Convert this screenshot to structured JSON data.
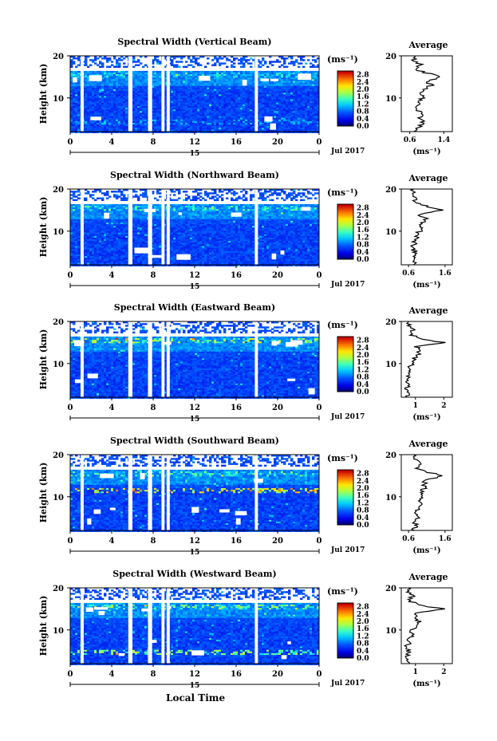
{
  "figure": {
    "date_label": "Jul 2017",
    "xlabel": "Local Time",
    "day_label": "15",
    "ylabel": "Height (km)",
    "unit_label": "(ms⁻¹)",
    "average_title": "Average",
    "average_unit": "(ms⁻¹)"
  },
  "chart_data": [
    {
      "type": "heatmap",
      "title": "Spectral Width (Vertical Beam)",
      "x_ticks": [
        "0",
        "4",
        "8",
        "12",
        "16",
        "20",
        "0"
      ],
      "y_ticks": [
        "20",
        "10"
      ],
      "xlim": [
        0,
        24
      ],
      "ylim": [
        2,
        20
      ],
      "colorbar_ticks": [
        "2.8",
        "2.4",
        "2.0",
        "1.6",
        "1.2",
        "0.8",
        "0.4",
        "0.0"
      ],
      "colorbar_range": [
        0,
        3.0
      ],
      "avg_ticks": [
        "0.6",
        "1.4"
      ],
      "avg_xlim": [
        0.4,
        1.6
      ],
      "avg_profile": {
        "height": [
          2,
          3,
          4,
          5,
          6,
          7,
          8,
          9,
          10,
          11,
          12,
          13,
          14,
          15,
          16,
          17,
          18,
          19,
          20
        ],
        "width": [
          0.75,
          0.8,
          0.95,
          0.85,
          0.9,
          0.8,
          0.8,
          0.85,
          0.9,
          0.88,
          0.95,
          1.1,
          1.0,
          1.35,
          0.95,
          0.7,
          0.85,
          0.7,
          0.8
        ]
      },
      "features": [
        {
          "height": 15.5,
          "level": 1.5
        },
        {
          "height": 4.5,
          "level": 1.2
        }
      ]
    },
    {
      "type": "heatmap",
      "title": "Spectral Width (Northward Beam)",
      "x_ticks": [
        "0",
        "4",
        "8",
        "12",
        "16",
        "20",
        "0"
      ],
      "y_ticks": [
        "20",
        "10"
      ],
      "xlim": [
        0,
        24
      ],
      "ylim": [
        2,
        20
      ],
      "colorbar_ticks": [
        "2.8",
        "2.4",
        "2.0",
        "1.6",
        "1.2",
        "0.8",
        "0.4",
        "0.0"
      ],
      "colorbar_range": [
        0,
        3.0
      ],
      "avg_ticks": [
        "0.6",
        "1.6"
      ],
      "avg_xlim": [
        0.4,
        1.8
      ],
      "avg_profile": {
        "height": [
          2,
          3,
          4,
          5,
          6,
          7,
          8,
          9,
          10,
          11,
          12,
          13,
          14,
          15,
          16,
          17,
          18,
          19,
          20
        ],
        "width": [
          0.7,
          0.75,
          0.7,
          0.8,
          0.7,
          0.75,
          0.8,
          0.85,
          0.9,
          0.95,
          1.0,
          1.05,
          0.9,
          1.5,
          1.05,
          0.7,
          0.8,
          0.7,
          0.75
        ]
      },
      "features": [
        {
          "height": 15.5,
          "level": 1.7
        }
      ]
    },
    {
      "type": "heatmap",
      "title": "Spectral Width (Eastward Beam)",
      "x_ticks": [
        "0",
        "4",
        "8",
        "12",
        "16",
        "20",
        "0"
      ],
      "y_ticks": [
        "20",
        "10"
      ],
      "xlim": [
        0,
        24
      ],
      "ylim": [
        2,
        20
      ],
      "colorbar_ticks": [
        "2.8",
        "2.4",
        "2.0",
        "1.6",
        "1.2",
        "0.8",
        "0.4",
        "0.0"
      ],
      "colorbar_range": [
        0,
        3.0
      ],
      "avg_ticks": [
        "1",
        "2"
      ],
      "avg_xlim": [
        0.5,
        2.3
      ],
      "avg_profile": {
        "height": [
          2,
          3,
          4,
          5,
          6,
          7,
          8,
          9,
          10,
          11,
          12,
          13,
          14,
          15,
          16,
          17,
          18,
          19,
          20
        ],
        "width": [
          0.7,
          0.75,
          0.7,
          0.7,
          0.75,
          0.7,
          0.75,
          0.8,
          0.85,
          0.95,
          1.1,
          1.15,
          1.05,
          2.0,
          1.1,
          0.8,
          0.9,
          0.75,
          0.8
        ]
      },
      "features": [
        {
          "height": 15.5,
          "level": 2.2
        }
      ]
    },
    {
      "type": "heatmap",
      "title": "Spectral Width (Southward Beam)",
      "x_ticks": [
        "0",
        "4",
        "8",
        "12",
        "16",
        "20",
        "0"
      ],
      "y_ticks": [
        "20",
        "10"
      ],
      "xlim": [
        0,
        24
      ],
      "ylim": [
        2,
        20
      ],
      "colorbar_ticks": [
        "2.8",
        "2.4",
        "2.0",
        "1.6",
        "1.2",
        "0.8",
        "0.4",
        "0.0"
      ],
      "colorbar_range": [
        0,
        3.0
      ],
      "avg_ticks": [
        "0.6",
        "1.6"
      ],
      "avg_xlim": [
        0.4,
        1.8
      ],
      "avg_profile": {
        "height": [
          2,
          3,
          4,
          5,
          6,
          7,
          8,
          9,
          10,
          11,
          12,
          13,
          14,
          15,
          16,
          17,
          18,
          19,
          20
        ],
        "width": [
          0.75,
          0.8,
          0.75,
          0.85,
          0.8,
          0.85,
          0.9,
          0.95,
          1.0,
          0.95,
          1.05,
          1.0,
          1.1,
          1.55,
          1.05,
          0.8,
          0.9,
          0.75,
          0.8
        ]
      },
      "features": [
        {
          "height": 15.5,
          "level": 1.8
        },
        {
          "height": 11.5,
          "level": 2.6
        }
      ]
    },
    {
      "type": "heatmap",
      "title": "Spectral Width (Westward Beam)",
      "x_ticks": [
        "0",
        "4",
        "8",
        "12",
        "16",
        "20",
        "0"
      ],
      "y_ticks": [
        "20",
        "10"
      ],
      "xlim": [
        0,
        24
      ],
      "ylim": [
        2,
        20
      ],
      "colorbar_ticks": [
        "2.8",
        "2.4",
        "2.0",
        "1.6",
        "1.2",
        "0.8",
        "0.4",
        "0.0"
      ],
      "colorbar_range": [
        0,
        3.0
      ],
      "avg_ticks": [
        "1",
        "2"
      ],
      "avg_xlim": [
        0.5,
        2.3
      ],
      "avg_profile": {
        "height": [
          2,
          3,
          4,
          5,
          6,
          7,
          8,
          9,
          10,
          11,
          12,
          13,
          14,
          15,
          16,
          17,
          18,
          19,
          20
        ],
        "width": [
          0.7,
          0.75,
          0.7,
          0.75,
          0.7,
          0.75,
          0.8,
          0.85,
          0.9,
          1.0,
          1.1,
          1.0,
          1.05,
          2.0,
          1.05,
          0.8,
          0.9,
          0.75,
          0.8
        ]
      },
      "features": [
        {
          "height": 15.5,
          "level": 2.0
        },
        {
          "height": 5.0,
          "level": 2.0
        }
      ]
    }
  ]
}
